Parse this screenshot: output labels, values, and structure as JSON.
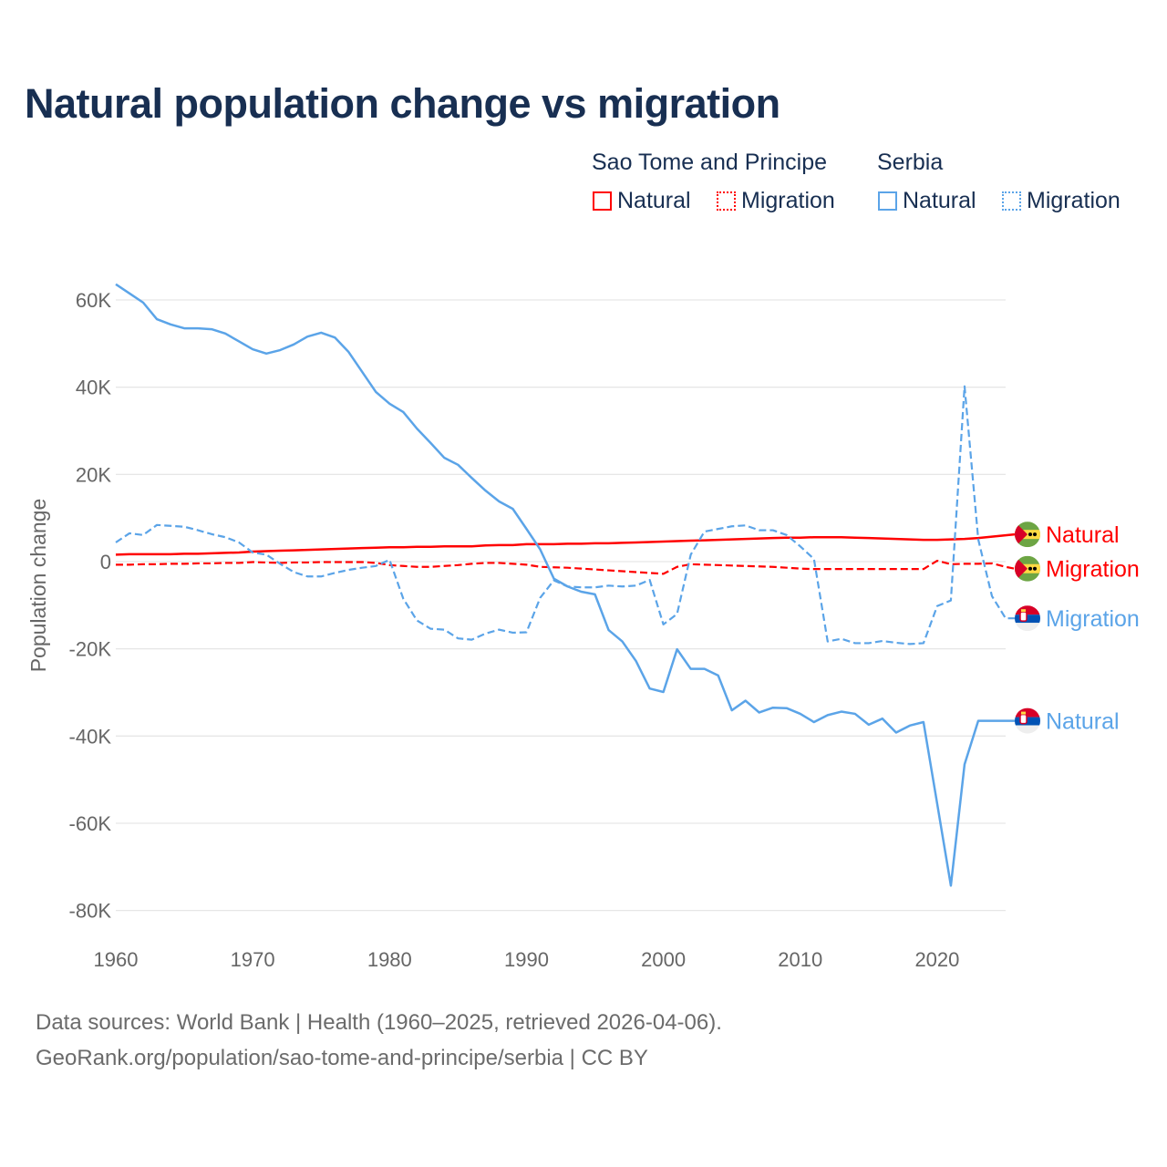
{
  "title": "Natural population change vs migration",
  "legend": {
    "groups": [
      {
        "name": "Sao Tome and Principe",
        "color": "#ff0000",
        "items": [
          "Natural",
          "Migration"
        ]
      },
      {
        "name": "Serbia",
        "color": "#5ba4e8",
        "items": [
          "Natural",
          "Migration"
        ]
      }
    ]
  },
  "source": {
    "line1": "Data sources: World Bank | Health (1960–2025, retrieved 2026-04-06).",
    "line2": "GeoRank.org/population/sao-tome-and-principe/serbia | CC BY"
  },
  "chart_data": {
    "type": "line",
    "title": "Natural population change vs migration",
    "xlabel": "",
    "ylabel": "Population change",
    "xlim": [
      1960,
      2025
    ],
    "ylim": [
      -80000,
      60000
    ],
    "xticks": [
      1960,
      1970,
      1980,
      1990,
      2000,
      2010,
      2020
    ],
    "xtick_labels": [
      "1960",
      "1970",
      "1980",
      "1990",
      "2000",
      "2010",
      "2020"
    ],
    "yticks": [
      60000,
      40000,
      20000,
      0,
      -20000,
      -40000,
      -60000,
      -80000
    ],
    "ytick_labels": [
      "60K",
      "40K",
      "20K",
      "0",
      "-20K",
      "-40K",
      "-60K",
      "-80K"
    ],
    "grid": true,
    "legend_position": "top-right",
    "units": "thousands",
    "series": [
      {
        "country": "Sao Tome and Principe",
        "name": "Natural",
        "color": "#ff0000",
        "dashed": false,
        "start": 1960,
        "values": [
          1.6,
          1.7,
          1.7,
          1.7,
          1.7,
          1.8,
          1.8,
          1.9,
          2.0,
          2.1,
          2.3,
          2.4,
          2.5,
          2.6,
          2.7,
          2.8,
          2.9,
          3.0,
          3.1,
          3.2,
          3.3,
          3.3,
          3.4,
          3.4,
          3.5,
          3.5,
          3.5,
          3.7,
          3.8,
          3.8,
          4.0,
          4.0,
          4.0,
          4.1,
          4.1,
          4.2,
          4.2,
          4.3,
          4.4,
          4.5,
          4.6,
          4.7,
          4.8,
          4.9,
          5.0,
          5.1,
          5.2,
          5.3,
          5.4,
          5.5,
          5.5,
          5.6,
          5.6,
          5.6,
          5.5,
          5.4,
          5.3,
          5.2,
          5.1,
          5.0,
          5.0,
          5.1,
          5.2,
          5.4
        ]
      },
      {
        "country": "Sao Tome and Principe",
        "name": "Migration",
        "color": "#ff0000",
        "dashed": true,
        "start": 1960,
        "values": [
          -0.7,
          -0.7,
          -0.6,
          -0.6,
          -0.5,
          -0.5,
          -0.4,
          -0.4,
          -0.3,
          -0.3,
          -0.1,
          -0.2,
          -0.3,
          -0.2,
          -0.2,
          -0.1,
          -0.1,
          -0.1,
          -0.1,
          -0.3,
          -0.8,
          -1.0,
          -1.2,
          -1.2,
          -1.0,
          -0.8,
          -0.5,
          -0.3,
          -0.3,
          -0.5,
          -0.7,
          -1.2,
          -1.3,
          -1.4,
          -1.6,
          -1.8,
          -2.0,
          -2.2,
          -2.4,
          -2.6,
          -2.8,
          -1.2,
          -0.6,
          -0.7,
          -0.8,
          -0.9,
          -1.0,
          -1.1,
          -1.2,
          -1.4,
          -1.6,
          -1.7,
          -1.7,
          -1.7,
          -1.7,
          -1.7,
          -1.7,
          -1.7,
          -1.7,
          -1.7,
          0.2,
          -0.6,
          -0.5,
          -0.5,
          -0.4,
          -1.2
        ]
      },
      {
        "country": "Serbia",
        "name": "Migration",
        "color": "#5ba4e8",
        "dashed": true,
        "start": 1960,
        "values": [
          4.4,
          6.5,
          6.1,
          8.4,
          8.2,
          8.0,
          7.2,
          6.3,
          5.6,
          4.4,
          2.1,
          1.6,
          -0.5,
          -2.4,
          -3.4,
          -3.4,
          -2.6,
          -1.9,
          -1.4,
          -1.0,
          0.4,
          -8.5,
          -13.5,
          -15.4,
          -15.6,
          -17.6,
          -17.9,
          -16.5,
          -15.6,
          -16.3,
          -16.2,
          -8.3,
          -4.3,
          -5.7,
          -5.9,
          -5.9,
          -5.5,
          -5.7,
          -5.5,
          -4.2,
          -14.4,
          -12.0,
          1.6,
          6.9,
          7.5,
          8.1,
          8.3,
          7.2,
          7.2,
          6.1,
          3.5,
          0.6,
          -18.3,
          -17.7,
          -18.7,
          -18.7,
          -18.2,
          -18.6,
          -18.9,
          -18.7,
          -10.2,
          -8.9,
          40.2,
          5.1,
          -7.9,
          -13.0
        ]
      },
      {
        "country": "Serbia",
        "name": "Natural",
        "color": "#5ba4e8",
        "dashed": false,
        "start": 1960,
        "values": [
          63.6,
          61.5,
          59.4,
          55.6,
          54.4,
          53.5,
          53.5,
          53.3,
          52.3,
          50.5,
          48.7,
          47.7,
          48.5,
          49.8,
          51.6,
          52.5,
          51.4,
          48.1,
          43.5,
          38.9,
          36.2,
          34.3,
          30.5,
          27.2,
          23.8,
          22.2,
          19.2,
          16.3,
          13.8,
          12.1,
          7.5,
          2.8,
          -3.9,
          -5.7,
          -6.9,
          -7.5,
          -15.7,
          -18.3,
          -22.8,
          -29.1,
          -29.9,
          -20.1,
          -24.6,
          -24.6,
          -26.1,
          -34.1,
          -31.9,
          -34.6,
          -33.5,
          -33.6,
          -34.9,
          -36.8,
          -35.2,
          -34.4,
          -34.9,
          -37.4,
          -36.0,
          -39.2,
          -37.6,
          -36.8,
          -55.5,
          -74.3,
          -46.5,
          -36.5
        ]
      }
    ]
  }
}
